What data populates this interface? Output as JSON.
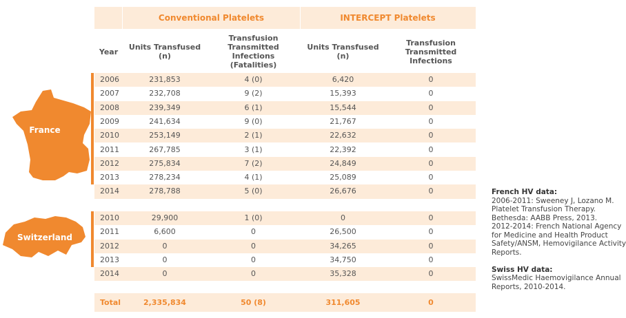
{
  "table": {
    "group_headers": [
      "Conventional Platelets",
      "INTERCEPT Platelets"
    ],
    "columns": [
      "Year",
      "Units Transfused (n)",
      "Transfusion Transmitted Infections (Fatalities)",
      "Units Transfused (n)",
      "Transfusion Transmitted Infections"
    ],
    "france": {
      "label": "France",
      "rows": [
        [
          "2006",
          "231,853",
          "4 (0)",
          "6,420",
          "0"
        ],
        [
          "2007",
          "232,708",
          "9 (2)",
          "15,393",
          "0"
        ],
        [
          "2008",
          "239,349",
          "6 (1)",
          "15,544",
          "0"
        ],
        [
          "2009",
          "241,634",
          "9 (0)",
          "21,767",
          "0"
        ],
        [
          "2010",
          "253,149",
          "2 (1)",
          "22,632",
          "0"
        ],
        [
          "2011",
          "267,785",
          "3 (1)",
          "22,392",
          "0"
        ],
        [
          "2012",
          "275,834",
          "7 (2)",
          "24,849",
          "0"
        ],
        [
          "2013",
          "278,234",
          "4 (1)",
          "25,089",
          "0"
        ],
        [
          "2014",
          "278,788",
          "5 (0)",
          "26,676",
          "0"
        ]
      ]
    },
    "switzerland": {
      "label": "Switzerland",
      "rows": [
        [
          "2010",
          "29,900",
          "1 (0)",
          "0",
          "0"
        ],
        [
          "2011",
          "6,600",
          "0",
          "26,500",
          "0"
        ],
        [
          "2012",
          "0",
          "0",
          "34,265",
          "0"
        ],
        [
          "2013",
          "0",
          "0",
          "34,750",
          "0"
        ],
        [
          "2014",
          "0",
          "0",
          "35,328",
          "0"
        ]
      ]
    },
    "total": [
      "Total",
      "2,335,834",
      "50 (8)",
      "311,605",
      "0"
    ]
  },
  "notes": [
    {
      "title": "French HV data:",
      "lines": [
        "2006-2011: Sweeney J, Lozano M.",
        "Platelet Transfusion Therapy.",
        "Bethesda: AABB Press, 2013.",
        "2012-2014: French National Agency",
        "for Medicine  and Health Product",
        "Safety/ANSM, Hemovigilance Activity",
        "Reports."
      ]
    },
    {
      "title": "Swiss HV data:",
      "lines": [
        "SwissMedic Haemovigilance Annual",
        "Reports, 2010-2014."
      ]
    }
  ]
}
